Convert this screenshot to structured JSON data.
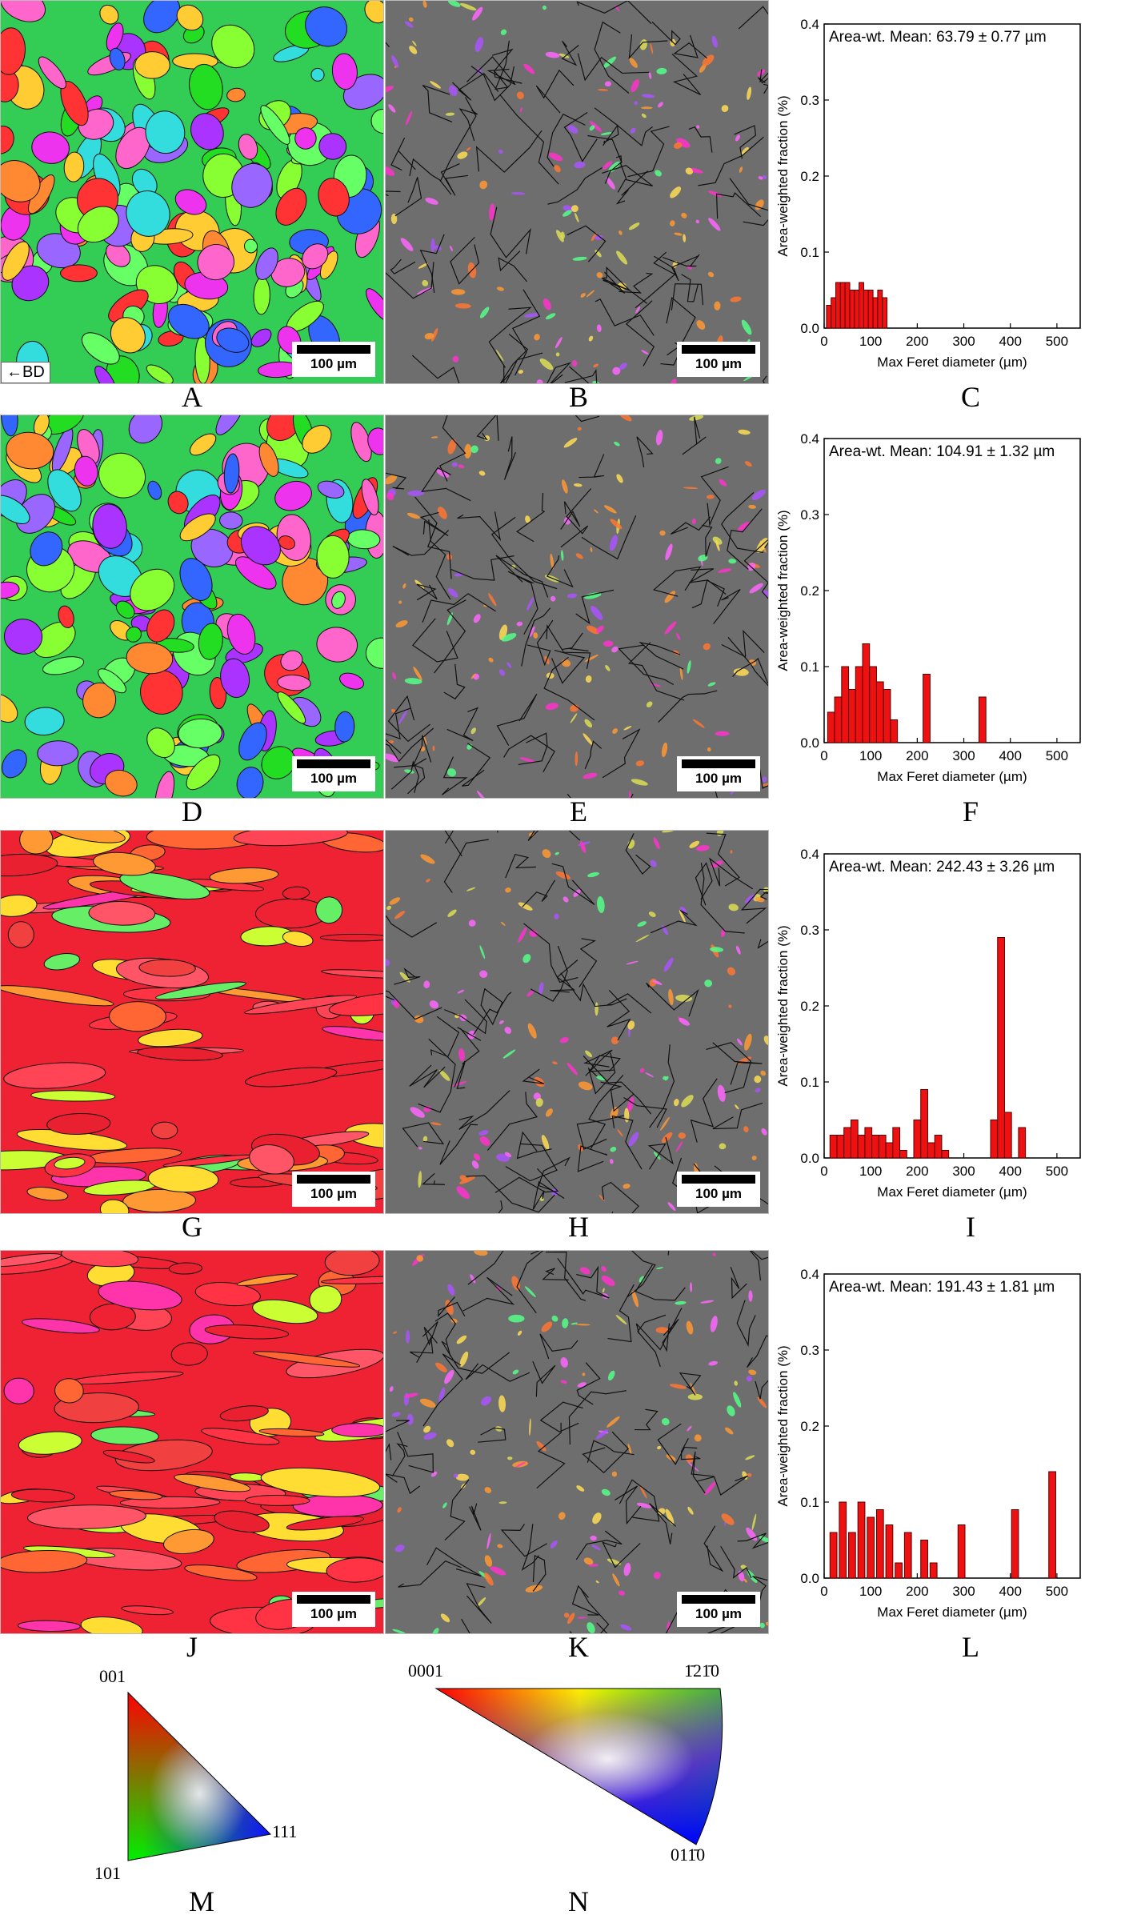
{
  "colors": {
    "bar_fill": "#ee1111",
    "bar_stroke": "#550000",
    "map_gray": "#6e6e6e"
  },
  "panel_labels": [
    "A",
    "B",
    "C",
    "D",
    "E",
    "F",
    "G",
    "H",
    "I",
    "J",
    "K",
    "L",
    "M",
    "N"
  ],
  "scalebar_label": "100 µm",
  "bd_label": "←BD",
  "ipf_cubic": {
    "top": "001",
    "left": "101",
    "right": "111"
  },
  "ipf_hex": {
    "left": "0001",
    "right": "1̄21̄0",
    "bottom": "011̄0"
  },
  "histograms": [
    {
      "panel": "C",
      "annotation": "Area-wt. Mean: 63.79 ± 0.77 µm",
      "chart_data": {
        "type": "bar",
        "xlabel": "Max Feret diameter (µm)",
        "ylabel": "Area-weighted fraction (%)",
        "xlim": [
          0,
          550
        ],
        "ylim": [
          0,
          0.4
        ],
        "xticks": [
          0,
          100,
          200,
          300,
          400,
          500
        ],
        "yticks": [
          0.0,
          0.1,
          0.2,
          0.3,
          0.4
        ],
        "bin_width": 10,
        "x": [
          10,
          20,
          30,
          40,
          50,
          60,
          70,
          80,
          90,
          100,
          110,
          120,
          130
        ],
        "values": [
          0.03,
          0.04,
          0.06,
          0.06,
          0.06,
          0.05,
          0.05,
          0.06,
          0.05,
          0.05,
          0.04,
          0.05,
          0.04
        ]
      }
    },
    {
      "panel": "F",
      "annotation": "Area-wt. Mean: 104.91 ± 1.32 µm",
      "chart_data": {
        "type": "bar",
        "xlabel": "Max Feret diameter (µm)",
        "ylabel": "Area-weighted fraction (%)",
        "xlim": [
          0,
          550
        ],
        "ylim": [
          0,
          0.4
        ],
        "xticks": [
          0,
          100,
          200,
          300,
          400,
          500
        ],
        "yticks": [
          0.0,
          0.1,
          0.2,
          0.3,
          0.4
        ],
        "bin_width": 15,
        "x": [
          15,
          30,
          45,
          60,
          75,
          90,
          105,
          120,
          135,
          150,
          220,
          340
        ],
        "values": [
          0.04,
          0.06,
          0.1,
          0.07,
          0.1,
          0.13,
          0.1,
          0.08,
          0.07,
          0.03,
          0.09,
          0.06
        ]
      }
    },
    {
      "panel": "I",
      "annotation": "Area-wt. Mean: 242.43 ± 3.26 µm",
      "chart_data": {
        "type": "bar",
        "xlabel": "Max Feret diameter (µm)",
        "ylabel": "Area-weighted fraction (%)",
        "xlim": [
          0,
          550
        ],
        "ylim": [
          0,
          0.4
        ],
        "xticks": [
          0,
          100,
          200,
          300,
          400,
          500
        ],
        "yticks": [
          0.0,
          0.1,
          0.2,
          0.3,
          0.4
        ],
        "bin_width": 15,
        "x": [
          20,
          35,
          50,
          65,
          80,
          95,
          110,
          125,
          140,
          155,
          170,
          200,
          215,
          230,
          245,
          260,
          365,
          380,
          395,
          425
        ],
        "values": [
          0.03,
          0.03,
          0.04,
          0.05,
          0.03,
          0.04,
          0.03,
          0.03,
          0.02,
          0.04,
          0.01,
          0.05,
          0.09,
          0.02,
          0.03,
          0.01,
          0.05,
          0.29,
          0.06,
          0.04
        ]
      }
    },
    {
      "panel": "L",
      "annotation": "Area-wt. Mean: 191.43 ± 1.81 µm",
      "chart_data": {
        "type": "bar",
        "xlabel": "Max Feret diameter (µm)",
        "ylabel": "Area-weighted fraction (%)",
        "xlim": [
          0,
          550
        ],
        "ylim": [
          0,
          0.4
        ],
        "xticks": [
          0,
          100,
          200,
          300,
          400,
          500
        ],
        "yticks": [
          0.0,
          0.1,
          0.2,
          0.3,
          0.4
        ],
        "bin_width": 15,
        "x": [
          20,
          40,
          60,
          80,
          100,
          120,
          140,
          160,
          180,
          215,
          235,
          295,
          410,
          490
        ],
        "values": [
          0.06,
          0.1,
          0.06,
          0.1,
          0.08,
          0.09,
          0.07,
          0.02,
          0.06,
          0.05,
          0.02,
          0.07,
          0.09,
          0.14
        ]
      }
    }
  ]
}
